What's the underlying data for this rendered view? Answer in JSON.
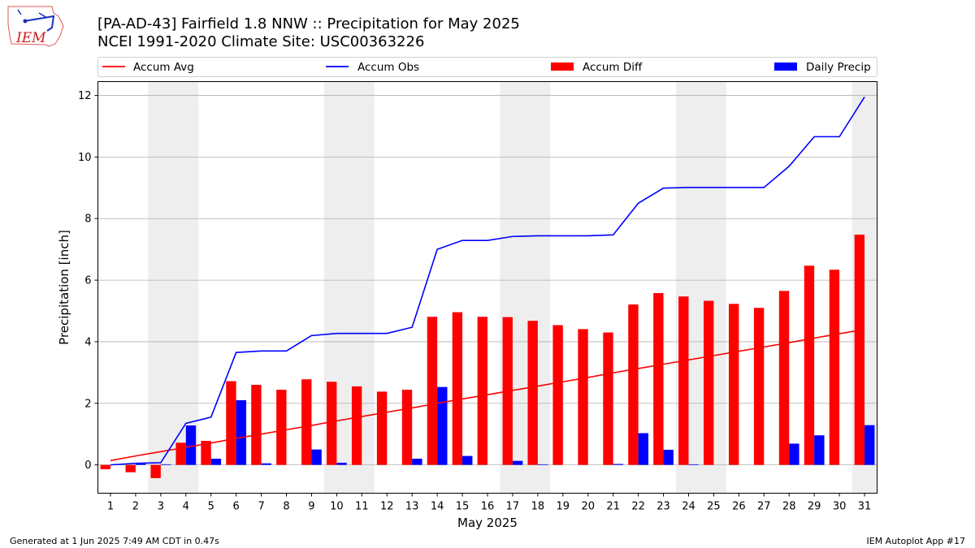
{
  "header": {
    "title_line1": "[PA-AD-43] Fairfield 1.8 NNW :: Precipitation for May 2025",
    "title_line2": "NCEI 1991-2020 Climate Site: USC00363226",
    "logo_text": "IEM"
  },
  "footer": {
    "left": "Generated at 1 Jun 2025 7:49 AM CDT in 0.47s",
    "right": "IEM Autoplot App #17"
  },
  "chart_data": {
    "type": "bar",
    "xlabel": "May 2025",
    "ylabel": "Precipitation [inch]",
    "ylim": [
      -0.92,
      12.45
    ],
    "xlim": [
      0.5,
      31.5
    ],
    "yticks": [
      0,
      2,
      4,
      6,
      8,
      10,
      12
    ],
    "grid": true,
    "legend_position": "top",
    "days": [
      1,
      2,
      3,
      4,
      5,
      6,
      7,
      8,
      9,
      10,
      11,
      12,
      13,
      14,
      15,
      16,
      17,
      18,
      19,
      20,
      21,
      22,
      23,
      24,
      25,
      26,
      27,
      28,
      29,
      30,
      31
    ],
    "shaded_days": [
      3,
      4,
      10,
      11,
      17,
      18,
      24,
      25,
      31
    ],
    "colors": {
      "accum_avg": "#ff0000",
      "accum_obs": "#0000ff",
      "accum_diff": "#ff0000",
      "daily_precip": "#0000ff",
      "weekend_shade": "#eeeeee",
      "grid": "#b0b0b0"
    },
    "series": [
      {
        "name": "Accum Avg",
        "kind": "line",
        "values": [
          0.14,
          0.29,
          0.43,
          0.57,
          0.71,
          0.86,
          1.0,
          1.14,
          1.28,
          1.43,
          1.57,
          1.71,
          1.85,
          2.0,
          2.14,
          2.28,
          2.42,
          2.56,
          2.7,
          2.84,
          2.99,
          3.13,
          3.27,
          3.41,
          3.55,
          3.69,
          3.83,
          3.97,
          4.12,
          4.26,
          4.4
        ]
      },
      {
        "name": "Accum Obs",
        "kind": "line",
        "values": [
          0.0,
          0.05,
          0.07,
          1.35,
          1.55,
          3.65,
          3.7,
          3.7,
          4.2,
          4.27,
          4.27,
          4.27,
          4.47,
          7.0,
          7.29,
          7.29,
          7.42,
          7.44,
          7.44,
          7.44,
          7.47,
          8.5,
          8.99,
          9.01,
          9.01,
          9.01,
          9.01,
          9.7,
          10.66,
          10.66,
          11.95
        ]
      },
      {
        "name": "Accum Diff",
        "kind": "bar",
        "values": [
          -0.14,
          -0.24,
          -0.43,
          0.72,
          0.78,
          2.72,
          2.6,
          2.44,
          2.78,
          2.7,
          2.55,
          2.38,
          2.44,
          4.81,
          4.96,
          4.81,
          4.8,
          4.68,
          4.54,
          4.41,
          4.3,
          5.21,
          5.58,
          5.47,
          5.33,
          5.23,
          5.1,
          5.65,
          6.47,
          6.34,
          7.48
        ]
      },
      {
        "name": "Daily Precip",
        "kind": "bar",
        "values": [
          0.0,
          0.05,
          0.02,
          1.28,
          0.2,
          2.1,
          0.05,
          0.0,
          0.5,
          0.07,
          0.0,
          0.0,
          0.2,
          2.53,
          0.29,
          0.0,
          0.13,
          0.02,
          0.0,
          0.0,
          0.03,
          1.03,
          0.49,
          0.02,
          0.0,
          0.0,
          0.0,
          0.69,
          0.96,
          0.0,
          1.29
        ]
      }
    ]
  }
}
